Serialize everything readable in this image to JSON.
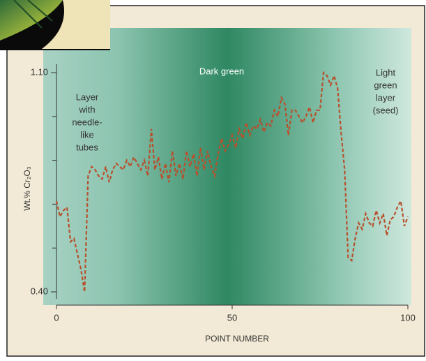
{
  "chart_data": {
    "type": "line",
    "y_label": "Wt.% Cr₂O₃",
    "x_label": "POINT NUMBER",
    "annotations": [
      {
        "lines": [
          "Dark green"
        ]
      },
      {
        "lines": [
          "Layer",
          "with",
          "needle-",
          "like",
          "tubes"
        ]
      },
      {
        "lines": [
          "Light",
          "green",
          "layer",
          "(seed)"
        ]
      }
    ],
    "color": "#b8502c",
    "x": [
      0,
      1,
      2,
      3,
      4,
      5,
      6,
      7,
      8,
      9,
      10,
      11,
      12,
      13,
      14,
      15,
      16,
      17,
      18,
      19,
      20,
      21,
      22,
      23,
      24,
      25,
      26,
      27,
      28,
      29,
      30,
      31,
      32,
      33,
      34,
      35,
      36,
      37,
      38,
      39,
      40,
      41,
      42,
      43,
      44,
      45,
      46,
      47,
      48,
      49,
      50,
      51,
      52,
      53,
      54,
      55,
      56,
      57,
      58,
      59,
      60,
      61,
      62,
      63,
      64,
      65,
      66,
      67,
      68,
      69,
      70,
      71,
      72,
      73,
      74,
      75,
      76,
      77,
      78,
      79,
      80,
      81,
      82,
      83,
      84,
      85,
      86,
      87,
      88,
      89,
      90,
      91,
      92,
      93,
      94,
      95,
      96,
      97,
      98,
      99,
      100
    ],
    "values": [
      0.69,
      0.64,
      0.66,
      0.67,
      0.56,
      0.57,
      0.52,
      0.47,
      0.4,
      0.77,
      0.8,
      0.79,
      0.77,
      0.76,
      0.8,
      0.75,
      0.79,
      0.81,
      0.8,
      0.79,
      0.82,
      0.8,
      0.83,
      0.81,
      0.79,
      0.82,
      0.77,
      0.92,
      0.79,
      0.83,
      0.76,
      0.81,
      0.75,
      0.85,
      0.77,
      0.81,
      0.76,
      0.85,
      0.8,
      0.84,
      0.77,
      0.86,
      0.79,
      0.85,
      0.8,
      0.77,
      0.84,
      0.89,
      0.85,
      0.87,
      0.9,
      0.86,
      0.92,
      0.89,
      0.94,
      0.9,
      0.93,
      0.92,
      0.95,
      0.91,
      0.94,
      0.93,
      0.98,
      0.96,
      1.02,
      1.0,
      0.9,
      0.98,
      0.98,
      0.96,
      0.94,
      0.96,
      0.99,
      0.94,
      0.98,
      0.98,
      1.1,
      1.09,
      1.06,
      1.09,
      1.05,
      0.91,
      0.79,
      0.51,
      0.5,
      0.57,
      0.62,
      0.6,
      0.65,
      0.62,
      0.61,
      0.66,
      0.62,
      0.65,
      0.58,
      0.63,
      0.64,
      0.67,
      0.69,
      0.61,
      0.64
    ],
    "xlim": [
      0,
      100
    ],
    "xticks": [
      0,
      50,
      100
    ],
    "ylim": [
      0.4,
      1.1
    ],
    "yticks": [
      {
        "value": 0.4,
        "label": "0.40"
      },
      {
        "value": 1.1,
        "label": "1.10"
      }
    ],
    "yminor": [
      0.54,
      0.68,
      0.82,
      0.96
    ]
  }
}
